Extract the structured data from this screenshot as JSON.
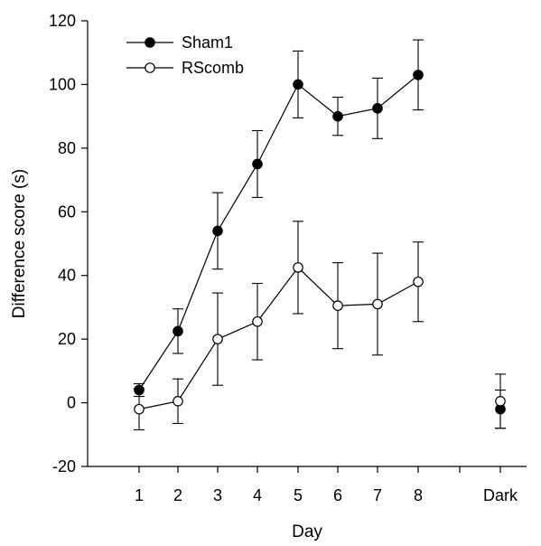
{
  "chart_data": {
    "type": "line",
    "xlabel": "Day",
    "ylabel": "Difference score (s)",
    "ylim": [
      -20,
      120
    ],
    "yticks": [
      -20,
      0,
      20,
      40,
      60,
      80,
      100,
      120
    ],
    "categories": [
      "1",
      "2",
      "3",
      "4",
      "5",
      "6",
      "7",
      "8",
      "Dark"
    ],
    "connected_categories": [
      "1",
      "2",
      "3",
      "4",
      "5",
      "6",
      "7",
      "8"
    ],
    "grid": false,
    "legend_position": "top-left",
    "series": [
      {
        "name": "Sham1",
        "marker": "filled-circle",
        "color": "#000000",
        "values": [
          4,
          22.5,
          54,
          75,
          100,
          90,
          92.5,
          103,
          -2
        ],
        "error": [
          2,
          7,
          12,
          10.5,
          10.5,
          6,
          9.5,
          11,
          6
        ]
      },
      {
        "name": "RScomb",
        "marker": "open-circle",
        "color": "#000000",
        "values": [
          -2,
          0.5,
          20,
          25.5,
          42.5,
          30.5,
          31,
          38,
          0.5
        ],
        "error": [
          6.5,
          7,
          14.5,
          12,
          14.5,
          13.5,
          16,
          12.5,
          8.5
        ]
      }
    ]
  }
}
